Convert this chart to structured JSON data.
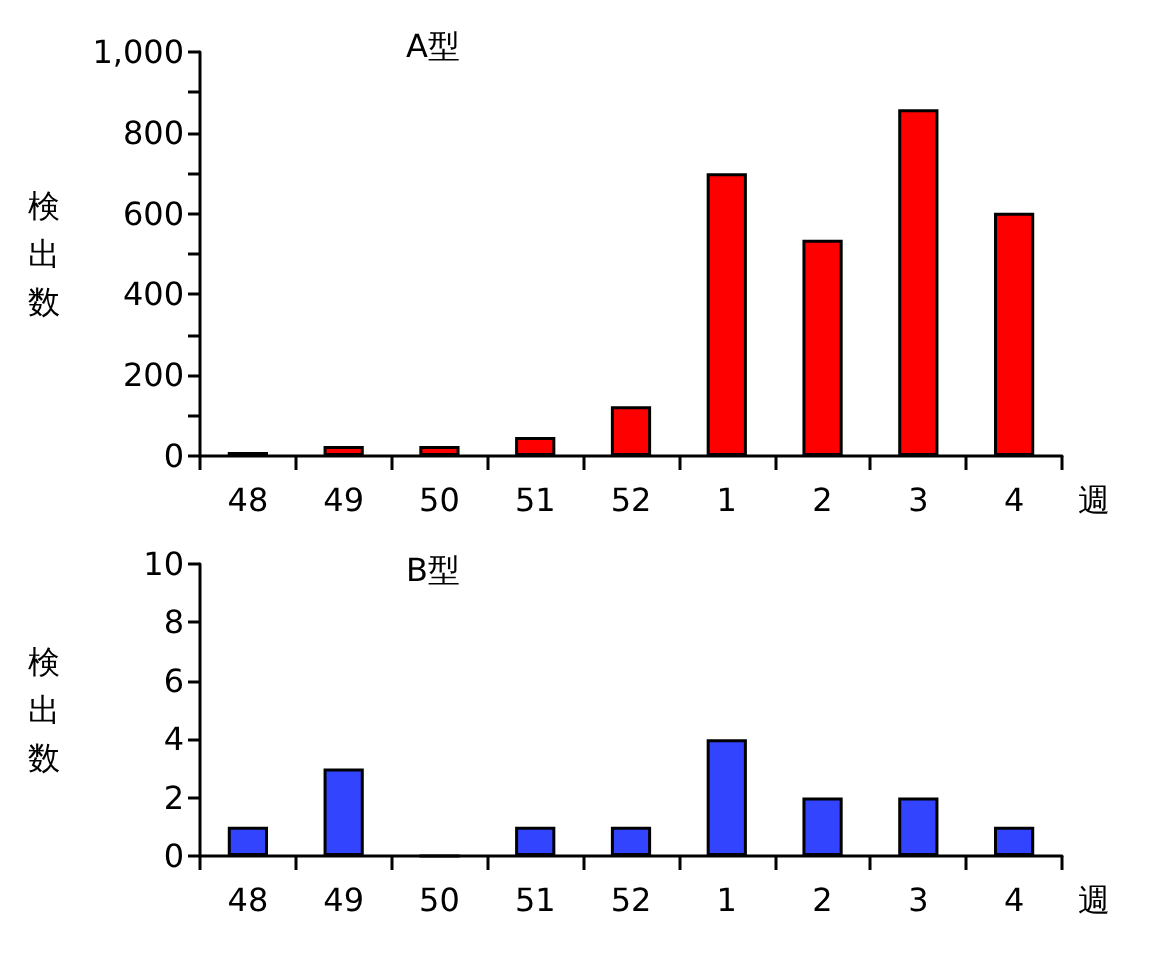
{
  "chart_data": [
    {
      "type": "bar",
      "title": "A型",
      "xlabel": "週",
      "ylabel": "検出数",
      "categories": [
        "48",
        "49",
        "50",
        "51",
        "52",
        "1",
        "2",
        "3",
        "4"
      ],
      "series": [
        {
          "color": "#ff0000",
          "values": [
            10,
            25,
            25,
            47,
            123,
            700,
            535,
            858,
            602
          ]
        }
      ],
      "ylim": [
        0,
        1000
      ],
      "yticks": [
        0,
        {
          "value": 100,
          "label": null
        },
        200,
        {
          "value": 300,
          "label": null
        },
        400,
        {
          "value": 500,
          "label": null
        },
        600,
        {
          "value": 700,
          "label": null
        },
        800,
        {
          "value": 900,
          "label": null
        },
        {
          "value": 1000,
          "label": "1,000"
        }
      ],
      "grid": false
    },
    {
      "type": "bar",
      "title": "B型",
      "xlabel": "週",
      "ylabel": "検出数",
      "categories": [
        "48",
        "49",
        "50",
        "51",
        "52",
        "1",
        "2",
        "3",
        "4"
      ],
      "series": [
        {
          "color": "#3344ff",
          "values": [
            1,
            3,
            0,
            1,
            1,
            4,
            2,
            2,
            1
          ]
        }
      ],
      "ylim": [
        0,
        10
      ],
      "yticks": [
        0,
        2,
        4,
        6,
        8,
        10
      ],
      "grid": false
    }
  ]
}
